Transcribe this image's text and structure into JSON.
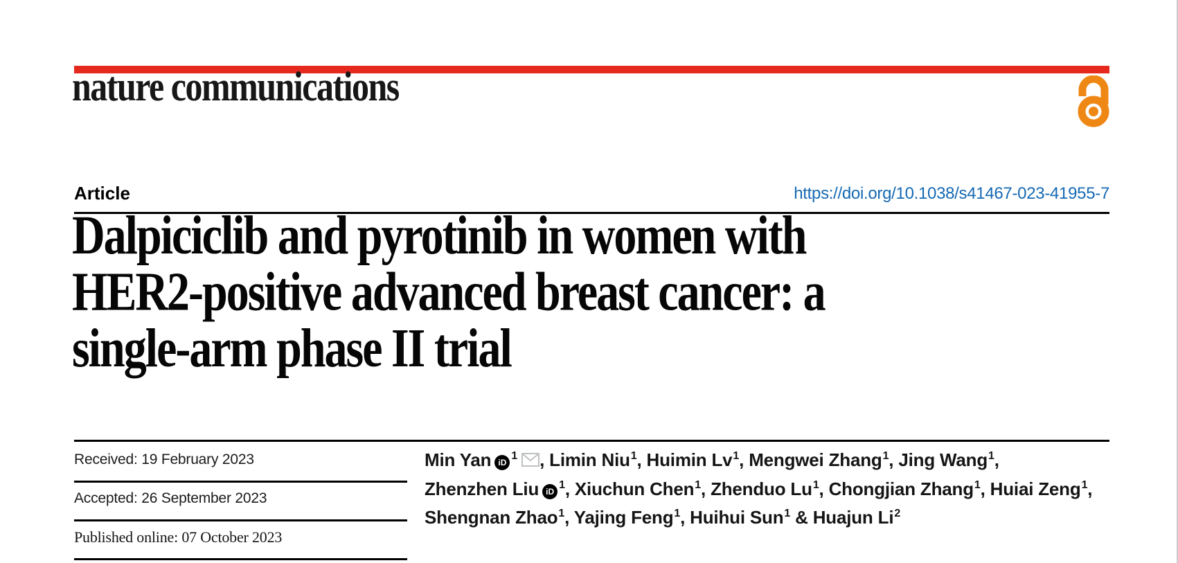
{
  "header": {
    "journal": "nature communications",
    "article_label": "Article",
    "doi": "https://doi.org/10.1038/s41467-023-41955-7",
    "colors": {
      "brand_red": "#e5291e",
      "open_access_orange": "#ef8714",
      "doi_link_blue": "#1569b3"
    },
    "open_access_icon": "open-padlock"
  },
  "title": {
    "lines": [
      "Dalpiciclib and pyrotinib in women with",
      "HER2-positive advanced breast cancer: a",
      "single-arm phase II trial"
    ]
  },
  "dates": {
    "rows": [
      {
        "label": "Received:",
        "value": "19 February 2023"
      },
      {
        "label": "Accepted:",
        "value": "26 September 2023"
      },
      {
        "label": "Published online:",
        "value": "07 October 2023"
      }
    ]
  },
  "authors": {
    "orcid_label": "iD",
    "lines": [
      [
        {
          "name": "Min Yan",
          "orcid": true,
          "sup": "1",
          "mail": true,
          "after": ", "
        },
        {
          "name": "Limin Niu",
          "sup": "1",
          "after": ", "
        },
        {
          "name": "Huimin Lv",
          "sup": "1",
          "after": ", "
        },
        {
          "name": "Mengwei Zhang",
          "sup": "1",
          "after": ", "
        },
        {
          "name": "Jing Wang",
          "sup": "1",
          "after": ","
        }
      ],
      [
        {
          "name": "Zhenzhen Liu",
          "orcid": true,
          "sup": "1",
          "after": ", "
        },
        {
          "name": "Xiuchun Chen",
          "sup": "1",
          "after": ", "
        },
        {
          "name": "Zhenduo Lu",
          "sup": "1",
          "after": ", "
        },
        {
          "name": "Chongjian Zhang",
          "sup": "1",
          "after": ", "
        },
        {
          "name": "Huiai Zeng",
          "sup": "1",
          "after": ","
        }
      ],
      [
        {
          "name": "Shengnan Zhao",
          "sup": "1",
          "after": ", "
        },
        {
          "name": "Yajing Feng",
          "sup": "1",
          "after": ", "
        },
        {
          "name": "Huihui Sun",
          "sup": "1",
          "after": " & "
        },
        {
          "name": "Huajun Li",
          "sup": "2",
          "after": ""
        }
      ]
    ]
  }
}
